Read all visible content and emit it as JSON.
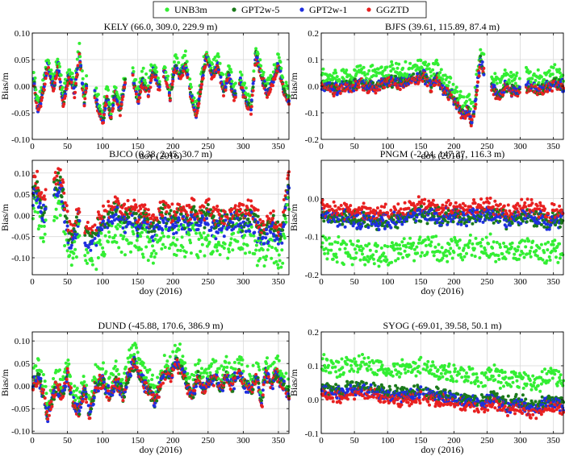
{
  "chart_data": {
    "type": "scatter",
    "legend": {
      "position": "top-center",
      "entries": [
        {
          "name": "UNB3m",
          "color": "#33ee33"
        },
        {
          "name": "GPT2w-5",
          "color": "#1a7a1a"
        },
        {
          "name": "GPT2w-1",
          "color": "#1f2fe0"
        },
        {
          "name": "GGZTD",
          "color": "#e82020"
        }
      ]
    },
    "xlabel": "doy (2016)",
    "ylabel": "Bias/m",
    "xlim": [
      0,
      365
    ],
    "xticks": [
      0,
      50,
      100,
      150,
      200,
      250,
      300,
      350
    ],
    "panels": [
      {
        "title": "KELY (66.0, 309.0, 229.9 m)",
        "ylim": [
          -0.1,
          0.1
        ],
        "yticks": [
          -0.1,
          -0.05,
          0,
          0.05,
          0.1
        ],
        "ytick_labels": [
          "-0.10",
          "-0.05",
          "0.00",
          "0.05",
          "0.10"
        ],
        "noise": 0.006,
        "gaps": [
          [
            78,
            88
          ],
          [
            133,
            142
          ],
          [
            182,
            186
          ],
          [
            290,
            294
          ]
        ],
        "offsets": {
          "UNB3m": 0.014,
          "GPT2w-5": 0.0,
          "GPT2w-1": 0.0,
          "GGZTD": -0.004
        },
        "anchors": [
          [
            1,
            0.02
          ],
          [
            8,
            -0.045
          ],
          [
            14,
            -0.02
          ],
          [
            22,
            0.04
          ],
          [
            30,
            0.0
          ],
          [
            37,
            0.035
          ],
          [
            44,
            -0.03
          ],
          [
            52,
            0.02
          ],
          [
            60,
            -0.01
          ],
          [
            67,
            0.06
          ],
          [
            74,
            -0.03
          ],
          [
            80,
            0.03
          ],
          [
            90,
            -0.02
          ],
          [
            100,
            -0.07
          ],
          [
            106,
            -0.02
          ],
          [
            112,
            -0.06
          ],
          [
            118,
            -0.01
          ],
          [
            125,
            -0.05
          ],
          [
            132,
            0.01
          ],
          [
            143,
            0.02
          ],
          [
            150,
            -0.03
          ],
          [
            157,
            0.01
          ],
          [
            165,
            -0.01
          ],
          [
            172,
            0.03
          ],
          [
            180,
            0.0
          ],
          [
            188,
            0.03
          ],
          [
            196,
            -0.02
          ],
          [
            203,
            0.04
          ],
          [
            210,
            0.02
          ],
          [
            218,
            0.04
          ],
          [
            226,
            -0.02
          ],
          [
            233,
            -0.055
          ],
          [
            240,
            0.0
          ],
          [
            248,
            0.06
          ],
          [
            256,
            0.02
          ],
          [
            264,
            0.04
          ],
          [
            272,
            -0.01
          ],
          [
            280,
            0.02
          ],
          [
            287,
            -0.02
          ],
          [
            296,
            0.01
          ],
          [
            304,
            -0.03
          ],
          [
            311,
            -0.045
          ],
          [
            318,
            0.06
          ],
          [
            326,
            0.02
          ],
          [
            334,
            -0.01
          ],
          [
            342,
            0.01
          ],
          [
            350,
            0.04
          ],
          [
            358,
            -0.01
          ],
          [
            365,
            -0.03
          ]
        ]
      },
      {
        "title": "BJFS (39.61, 115.89, 87.4 m)",
        "ylim": [
          -0.2,
          0.2
        ],
        "yticks": [
          -0.2,
          -0.1,
          0,
          0.1,
          0.2
        ],
        "ytick_labels": [
          "-0.2",
          "-0.1",
          "0.0",
          "0.1",
          "0.2"
        ],
        "noise": 0.016,
        "gaps": [
          [
            246,
            256
          ],
          [
            300,
            308
          ]
        ],
        "offsets": {
          "UNB3m": 0.04,
          "GPT2w-5": 0.0,
          "GPT2w-1": 0.0,
          "GGZTD": -0.005
        },
        "anchors": [
          [
            1,
            0.0
          ],
          [
            20,
            -0.01
          ],
          [
            40,
            0.0
          ],
          [
            60,
            0.01
          ],
          [
            80,
            0.0
          ],
          [
            100,
            0.02
          ],
          [
            120,
            0.01
          ],
          [
            140,
            0.03
          ],
          [
            155,
            0.04
          ],
          [
            165,
            0.0
          ],
          [
            175,
            0.03
          ],
          [
            185,
            -0.02
          ],
          [
            195,
            -0.03
          ],
          [
            205,
            -0.07
          ],
          [
            215,
            -0.11
          ],
          [
            222,
            -0.09
          ],
          [
            228,
            -0.14
          ],
          [
            236,
            0.02
          ],
          [
            240,
            0.1
          ],
          [
            244,
            0.06
          ],
          [
            258,
            0.0
          ],
          [
            268,
            -0.04
          ],
          [
            278,
            0.0
          ],
          [
            290,
            -0.02
          ],
          [
            310,
            0.0
          ],
          [
            330,
            -0.01
          ],
          [
            350,
            0.01
          ],
          [
            365,
            0.0
          ]
        ]
      },
      {
        "title": "BJCO (6.38, 2.45, 30.7 m)",
        "ylim": [
          -0.14,
          0.13
        ],
        "yticks": [
          -0.1,
          -0.05,
          0,
          0.05,
          0.1
        ],
        "ytick_labels": [
          "-0.10",
          "-0.05",
          "0.00",
          "0.05",
          "0.10"
        ],
        "noise": 0.018,
        "gaps": [
          [
            20,
            30
          ],
          [
            68,
            74
          ]
        ],
        "offsets": {
          "UNB3m": -0.05,
          "GPT2w-5": 0.005,
          "GPT2w-1": -0.01,
          "GGZTD": 0.02
        },
        "anchors": [
          [
            1,
            0.05
          ],
          [
            6,
            0.07
          ],
          [
            12,
            0.01
          ],
          [
            18,
            0.02
          ],
          [
            32,
            0.06
          ],
          [
            38,
            0.08
          ],
          [
            44,
            0.04
          ],
          [
            50,
            -0.03
          ],
          [
            56,
            -0.06
          ],
          [
            62,
            -0.03
          ],
          [
            66,
            0.0
          ],
          [
            76,
            -0.05
          ],
          [
            84,
            -0.06
          ],
          [
            92,
            -0.04
          ],
          [
            100,
            -0.02
          ],
          [
            110,
            0.0
          ],
          [
            120,
            0.01
          ],
          [
            130,
            -0.01
          ],
          [
            140,
            0.0
          ],
          [
            150,
            -0.02
          ],
          [
            160,
            -0.01
          ],
          [
            170,
            -0.03
          ],
          [
            180,
            -0.01
          ],
          [
            190,
            0.0
          ],
          [
            200,
            -0.02
          ],
          [
            210,
            0.0
          ],
          [
            220,
            -0.02
          ],
          [
            230,
            0.0
          ],
          [
            240,
            -0.02
          ],
          [
            250,
            0.0
          ],
          [
            260,
            -0.03
          ],
          [
            270,
            -0.01
          ],
          [
            280,
            -0.02
          ],
          [
            290,
            0.0
          ],
          [
            300,
            -0.02
          ],
          [
            310,
            0.0
          ],
          [
            320,
            -0.03
          ],
          [
            330,
            -0.05
          ],
          [
            340,
            -0.02
          ],
          [
            350,
            -0.05
          ],
          [
            356,
            -0.03
          ],
          [
            362,
            0.04
          ],
          [
            365,
            0.07
          ]
        ]
      },
      {
        "title": "PNGM (-2.04, 147.37, 116.3 m)",
        "ylim": [
          -0.2,
          0.1
        ],
        "yticks": [
          -0.2,
          -0.1,
          0
        ],
        "ytick_labels": [
          "-0.2",
          "-0.1",
          "0.0"
        ],
        "noise": 0.016,
        "gaps": [],
        "offsets": {
          "UNB3m": -0.085,
          "GPT2w-5": 0.0,
          "GPT2w-1": 0.0,
          "GGZTD": 0.022
        },
        "anchors": [
          [
            1,
            -0.045
          ],
          [
            40,
            -0.055
          ],
          [
            80,
            -0.06
          ],
          [
            120,
            -0.055
          ],
          [
            150,
            -0.04
          ],
          [
            180,
            -0.05
          ],
          [
            200,
            -0.045
          ],
          [
            220,
            -0.05
          ],
          [
            250,
            -0.04
          ],
          [
            280,
            -0.055
          ],
          [
            310,
            -0.045
          ],
          [
            340,
            -0.06
          ],
          [
            365,
            -0.055
          ]
        ]
      },
      {
        "title": "DUND (-45.88, 170.6, 386.9 m)",
        "ylim": [
          -0.105,
          0.12
        ],
        "yticks": [
          -0.1,
          -0.05,
          0,
          0.05,
          0.1
        ],
        "ytick_labels": [
          "-0.10",
          "-0.05",
          "0.00",
          "0.05",
          "0.10"
        ],
        "noise": 0.012,
        "gaps": [],
        "offsets": {
          "UNB3m": 0.025,
          "GPT2w-5": 0.0,
          "GPT2w-1": 0.0,
          "GGZTD": 0.0
        },
        "anchors": [
          [
            1,
            0.0
          ],
          [
            8,
            0.02
          ],
          [
            16,
            -0.02
          ],
          [
            22,
            -0.07
          ],
          [
            28,
            -0.03
          ],
          [
            35,
            0.0
          ],
          [
            42,
            -0.02
          ],
          [
            50,
            0.02
          ],
          [
            58,
            -0.03
          ],
          [
            66,
            -0.06
          ],
          [
            74,
            -0.01
          ],
          [
            82,
            -0.06
          ],
          [
            90,
            0.0
          ],
          [
            100,
            0.01
          ],
          [
            110,
            -0.02
          ],
          [
            120,
            0.01
          ],
          [
            130,
            -0.02
          ],
          [
            138,
            0.03
          ],
          [
            146,
            0.05
          ],
          [
            154,
            0.02
          ],
          [
            160,
            0.0
          ],
          [
            168,
            -0.01
          ],
          [
            174,
            -0.04
          ],
          [
            180,
            -0.01
          ],
          [
            188,
            0.03
          ],
          [
            196,
            0.02
          ],
          [
            204,
            0.05
          ],
          [
            212,
            0.04
          ],
          [
            220,
            0.0
          ],
          [
            228,
            -0.02
          ],
          [
            236,
            0.02
          ],
          [
            244,
            -0.01
          ],
          [
            252,
            0.01
          ],
          [
            260,
            0.02
          ],
          [
            268,
            0.0
          ],
          [
            276,
            0.02
          ],
          [
            284,
            0.0
          ],
          [
            292,
            0.03
          ],
          [
            300,
            0.01
          ],
          [
            310,
            -0.01
          ],
          [
            320,
            0.02
          ],
          [
            326,
            -0.04
          ],
          [
            332,
            0.03
          ],
          [
            340,
            0.0
          ],
          [
            348,
            0.03
          ],
          [
            356,
            0.0
          ],
          [
            365,
            -0.02
          ]
        ]
      },
      {
        "title": "SYOG (-69.01, 39.58, 50.1 m)",
        "ylim": [
          -0.1,
          0.2
        ],
        "yticks": [
          -0.1,
          0,
          0.1,
          0.2
        ],
        "ytick_labels": [
          "-0.1",
          "0.0",
          "0.1",
          "0.2"
        ],
        "noise": 0.014,
        "gaps": [],
        "offsets": {
          "UNB3m": 0.075,
          "GPT2w-5": 0.008,
          "GPT2w-1": 0.0,
          "GGZTD": -0.012
        },
        "anchors": [
          [
            1,
            0.03
          ],
          [
            30,
            0.02
          ],
          [
            60,
            0.03
          ],
          [
            90,
            0.02
          ],
          [
            120,
            0.01
          ],
          [
            150,
            0.02
          ],
          [
            180,
            0.01
          ],
          [
            210,
            0.0
          ],
          [
            240,
            -0.01
          ],
          [
            260,
            0.0
          ],
          [
            280,
            -0.02
          ],
          [
            300,
            -0.01
          ],
          [
            320,
            -0.03
          ],
          [
            340,
            -0.01
          ],
          [
            365,
            -0.02
          ]
        ]
      }
    ]
  }
}
